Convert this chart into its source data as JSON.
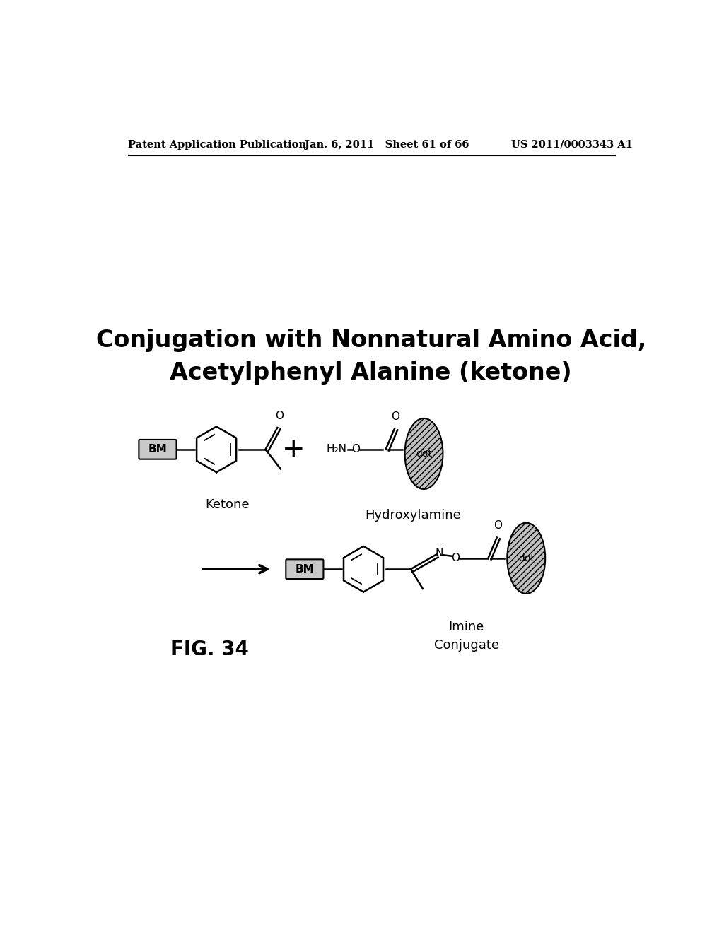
{
  "title_line1": "Conjugation with Nonnatural Amino Acid,",
  "title_line2": "Acetylphenyl Alanine (ketone)",
  "header_left": "Patent Application Publication",
  "header_mid": "Jan. 6, 2011   Sheet 61 of 66",
  "header_right": "US 2011/0003343 A1",
  "label_ketone": "Ketone",
  "label_hydroxylamine": "Hydroxylamine",
  "label_imine": "Imine",
  "label_conjugate": "Conjugate",
  "label_fig": "FIG. 34",
  "label_bm": "BM",
  "label_dot": "dot",
  "bg_color": "#ffffff",
  "text_color": "#000000",
  "title_fontsize": 24,
  "header_fontsize": 10.5,
  "label_fontsize": 13,
  "fig_label_fontsize": 20,
  "chem_fontsize": 11
}
